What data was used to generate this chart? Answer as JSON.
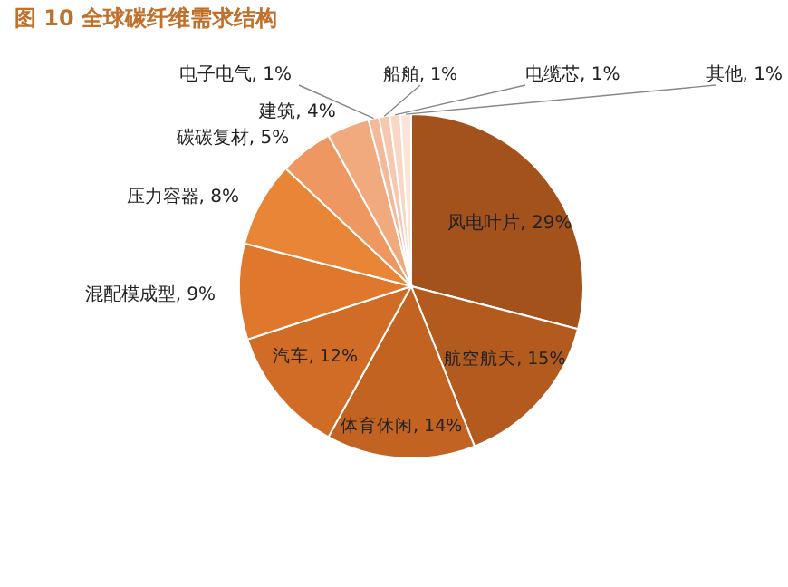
{
  "chart_data": {
    "type": "pie",
    "title": "图 10  全球碳纤维需求结构",
    "categories": [
      "风电叶片",
      "航空航天",
      "体育休闲",
      "汽车",
      "混配模成型",
      "压力容器",
      "碳碳复材",
      "建筑",
      "电子电气",
      "船舶",
      "电缆芯",
      "其他"
    ],
    "values": [
      29,
      15,
      14,
      12,
      9,
      8,
      5,
      4,
      1,
      1,
      1,
      1
    ],
    "value_labels": [
      "29%",
      "15%",
      "14%",
      "12%",
      "9%",
      "8%",
      "5%",
      "4%",
      "1%",
      "1%",
      "1%",
      "1%"
    ],
    "colors": [
      "#a4521c",
      "#b35a1f",
      "#c26321",
      "#d06c25",
      "#df772c",
      "#e98536",
      "#ee9760",
      "#f1a97e",
      "#f4b998",
      "#f6c8ae",
      "#f9d7c4",
      "#fbe5d8"
    ],
    "data_labels": true
  }
}
